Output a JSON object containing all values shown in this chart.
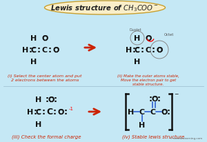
{
  "bg_color": "#c5e8f5",
  "title_bg": "#faeec8",
  "title_border": "#c8a030",
  "text_black": "#111111",
  "text_red": "#cc2200",
  "text_blue": "#2255cc",
  "watermark": "© knordislearning.com",
  "step1_label": "(i) Select the center atom and put\n2 electrons between the atoms",
  "step2_label": "(ii) Make the outer atoms stable,\nMove the electron pair to get\nstable structure.",
  "step3_label": "(iii) Check the formal charge",
  "step4_label": "(iv) Stable lewis structure"
}
